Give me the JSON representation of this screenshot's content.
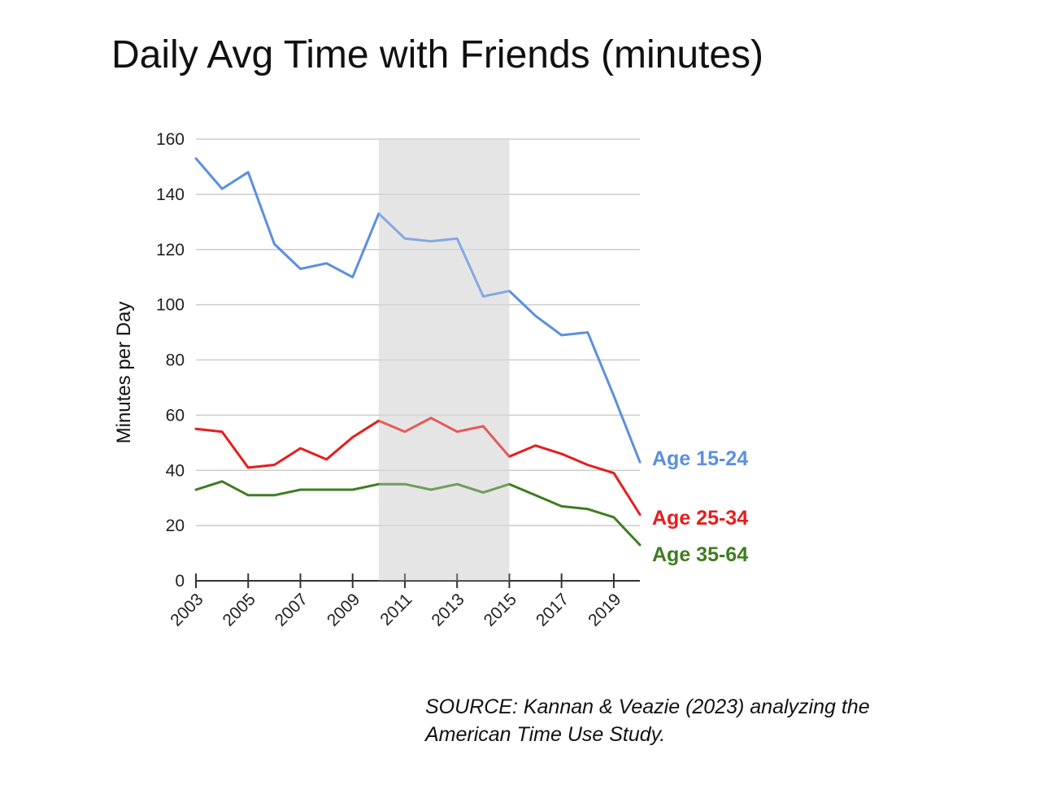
{
  "title": "Daily Avg Time with Friends (minutes)",
  "source": {
    "line1": "SOURCE: Kannan & Veazie (2023) analyzing the",
    "line2": "American Time Use Study."
  },
  "chart_data": {
    "type": "line",
    "title": "Daily Avg Time with Friends (minutes)",
    "xlabel": "",
    "ylabel": "Minutes per Day",
    "ylim": [
      0,
      160
    ],
    "yticks": [
      0,
      20,
      40,
      60,
      80,
      100,
      120,
      140,
      160
    ],
    "xlim": [
      2003,
      2020
    ],
    "xticks": [
      "2003",
      "2005",
      "2007",
      "2009",
      "2011",
      "2013",
      "2015",
      "2017",
      "2019"
    ],
    "grid": true,
    "highlight_band": {
      "from": 2010,
      "to": 2015,
      "color": "#e5e5e5"
    },
    "x": [
      2003,
      2004,
      2005,
      2006,
      2007,
      2008,
      2009,
      2010,
      2011,
      2012,
      2013,
      2014,
      2015,
      2016,
      2017,
      2018,
      2019,
      2020
    ],
    "series": [
      {
        "name": "Age 15-24",
        "color": "#5b8fe0",
        "values": [
          153,
          142,
          148,
          122,
          113,
          115,
          110,
          133,
          124,
          123,
          124,
          103,
          105,
          96,
          89,
          90,
          67,
          43
        ]
      },
      {
        "name": "Age 25-34",
        "color": "#e51d1d",
        "values": [
          55,
          54,
          41,
          42,
          48,
          44,
          52,
          58,
          54,
          59,
          54,
          56,
          45,
          49,
          46,
          42,
          39,
          24
        ]
      },
      {
        "name": "Age 35-64",
        "color": "#3f7d20",
        "values": [
          33,
          36,
          31,
          31,
          33,
          33,
          33,
          35,
          35,
          33,
          35,
          32,
          35,
          31,
          27,
          26,
          23,
          13
        ]
      }
    ],
    "legend_placement": "right, at line ends"
  }
}
